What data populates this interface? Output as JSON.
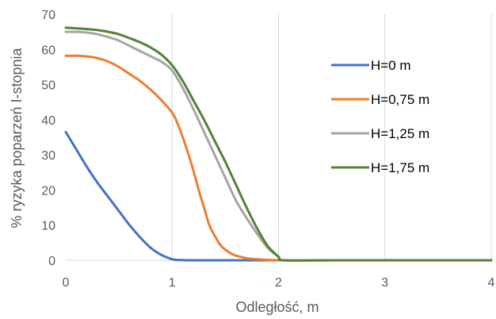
{
  "chart_data": {
    "type": "line",
    "title": "",
    "xlabel": "Odległość, m",
    "ylabel": "% ryzyka poparzeń I-stopnia",
    "xlim": [
      0,
      4
    ],
    "ylim": [
      0,
      70
    ],
    "x_ticks": [
      "0",
      "1",
      "2",
      "3",
      "4"
    ],
    "y_ticks": [
      "0",
      "10",
      "20",
      "30",
      "40",
      "50",
      "60",
      "70"
    ],
    "grid": "vertical",
    "legend_position": "right",
    "series": [
      {
        "name": "H=0 m",
        "color": "#4472C4",
        "x": [
          0,
          0.1,
          0.2,
          0.3,
          0.4,
          0.5,
          0.6,
          0.7,
          0.8,
          0.9,
          1.0,
          1.05,
          1.1,
          1.15,
          1.2,
          1.3,
          1.5,
          2.0,
          2.5,
          3.0,
          3.5,
          4.0
        ],
        "y": [
          36.5,
          31.5,
          26.5,
          22,
          18,
          14,
          10,
          6.5,
          3.5,
          1.5,
          0.3,
          0.1,
          0.05,
          0,
          0,
          0,
          0,
          0,
          0,
          0,
          0,
          0
        ]
      },
      {
        "name": "H=0,75 m",
        "color": "#ED7D31",
        "x": [
          0,
          0.1,
          0.2,
          0.3,
          0.4,
          0.5,
          0.6,
          0.7,
          0.8,
          0.9,
          1.0,
          1.05,
          1.1,
          1.15,
          1.2,
          1.25,
          1.3,
          1.35,
          1.4,
          1.45,
          1.5,
          1.55,
          1.6,
          1.7,
          1.8,
          1.9,
          2.0,
          2.1,
          2.4,
          3.0,
          4.0
        ],
        "y": [
          58.2,
          58.2,
          58,
          57.5,
          56.5,
          55,
          53,
          51,
          48.5,
          45.5,
          42,
          39,
          35,
          30.5,
          25.5,
          20,
          15,
          10,
          7,
          4.5,
          3,
          2,
          1.3,
          0.6,
          0.3,
          0.1,
          0,
          0,
          0,
          0,
          0
        ]
      },
      {
        "name": "H=1,25 m",
        "color": "#A5A5A5",
        "x": [
          0,
          0.1,
          0.2,
          0.3,
          0.4,
          0.5,
          0.6,
          0.7,
          0.8,
          0.9,
          1.0,
          1.1,
          1.2,
          1.3,
          1.4,
          1.5,
          1.6,
          1.7,
          1.8,
          1.9,
          2.0,
          2.05,
          2.5,
          3.0,
          4.0
        ],
        "y": [
          65,
          65,
          64.8,
          64.3,
          63.5,
          62.5,
          61,
          59.5,
          58,
          56.5,
          54,
          49,
          43,
          36.5,
          30,
          23.5,
          17,
          12,
          7.5,
          3.5,
          1,
          0,
          0,
          0,
          0
        ]
      },
      {
        "name": "H=1,75 m",
        "color": "#548235",
        "x": [
          0,
          0.1,
          0.2,
          0.3,
          0.4,
          0.5,
          0.6,
          0.7,
          0.8,
          0.9,
          1.0,
          1.1,
          1.2,
          1.3,
          1.4,
          1.5,
          1.6,
          1.7,
          1.8,
          1.9,
          2.0,
          2.05,
          2.5,
          3.0,
          4.0
        ],
        "y": [
          66.2,
          66,
          65.8,
          65.5,
          65,
          64.3,
          63.2,
          62,
          60.5,
          58.5,
          55.5,
          51,
          45.5,
          40,
          34,
          28,
          21.5,
          15,
          9,
          4,
          1,
          0,
          0,
          0,
          0
        ]
      }
    ]
  }
}
